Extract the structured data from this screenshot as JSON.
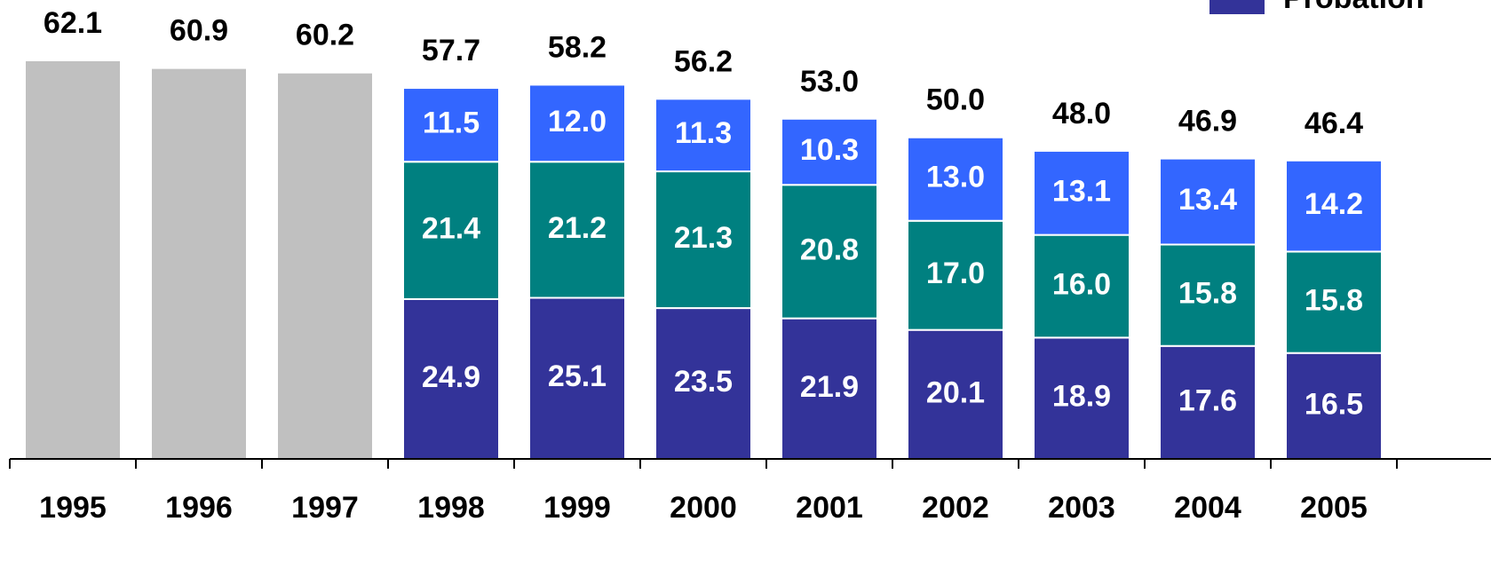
{
  "chart_data": {
    "type": "stacked_bar",
    "categories": [
      "1995",
      "1996",
      "1997",
      "1998",
      "1999",
      "2000",
      "2001",
      "2002",
      "2003",
      "2004",
      "2005"
    ],
    "series": [
      {
        "name": "Probation",
        "color": "#333399",
        "values": [
          null,
          null,
          null,
          24.9,
          25.1,
          23.5,
          21.9,
          20.1,
          18.9,
          17.6,
          16.5
        ]
      },
      {
        "color": "#008080",
        "values": [
          null,
          null,
          null,
          21.4,
          21.2,
          21.3,
          20.8,
          17.0,
          16.0,
          15.8,
          15.8
        ]
      },
      {
        "color": "#3366ff",
        "values": [
          null,
          null,
          null,
          11.5,
          12.0,
          11.3,
          10.3,
          13.0,
          13.1,
          13.4,
          14.2
        ]
      },
      {
        "color": "#c0c0c0",
        "values": [
          62.1,
          60.9,
          60.2,
          null,
          null,
          null,
          null,
          null,
          null,
          null,
          null
        ]
      }
    ],
    "totals": [
      62.1,
      60.9,
      60.2,
      57.7,
      58.2,
      56.2,
      53.0,
      50.0,
      48.0,
      46.9,
      46.4
    ],
    "ylim": [
      0,
      71.5
    ],
    "legend": "top-right"
  }
}
